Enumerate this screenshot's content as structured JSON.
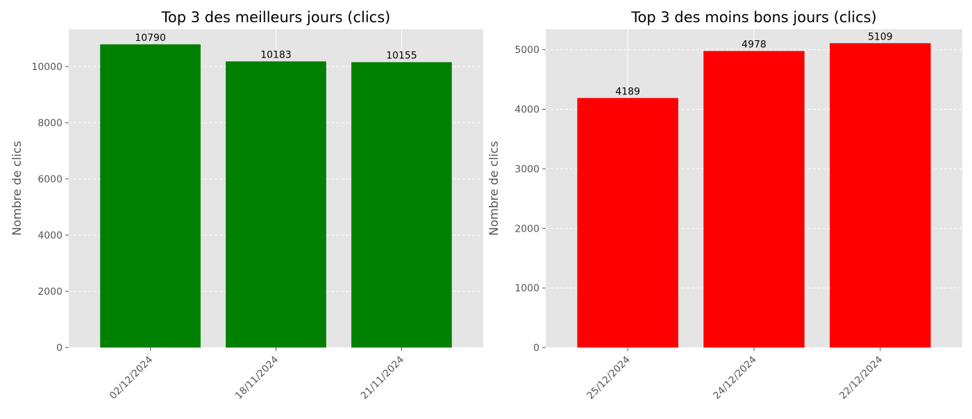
{
  "chart_data": [
    {
      "type": "bar",
      "title": "Top 3 des meilleurs jours (clics)",
      "xlabel": "",
      "ylabel": "Nombre de clics",
      "categories": [
        "02/12/2024",
        "18/11/2024",
        "21/11/2024"
      ],
      "values": [
        10790,
        10183,
        10155
      ],
      "data_labels": [
        "10790",
        "10183",
        "10155"
      ],
      "ylim": [
        0,
        11330
      ],
      "yticks": [
        0,
        2000,
        4000,
        6000,
        8000,
        10000
      ],
      "ytick_labels": [
        "0",
        "2000",
        "4000",
        "6000",
        "8000",
        "10000"
      ],
      "bar_color": "#008000",
      "grid": true
    },
    {
      "type": "bar",
      "title": "Top 3 des moins bons jours (clics)",
      "xlabel": "",
      "ylabel": "Nombre de clics",
      "categories": [
        "25/12/2024",
        "24/12/2024",
        "22/12/2024"
      ],
      "values": [
        4189,
        4978,
        5109
      ],
      "data_labels": [
        "4189",
        "4978",
        "5109"
      ],
      "ylim": [
        0,
        5345
      ],
      "yticks": [
        0,
        1000,
        2000,
        3000,
        4000,
        5000
      ],
      "ytick_labels": [
        "0",
        "1000",
        "2000",
        "3000",
        "4000",
        "5000"
      ],
      "bar_color": "#ff0000",
      "grid": true
    }
  ]
}
